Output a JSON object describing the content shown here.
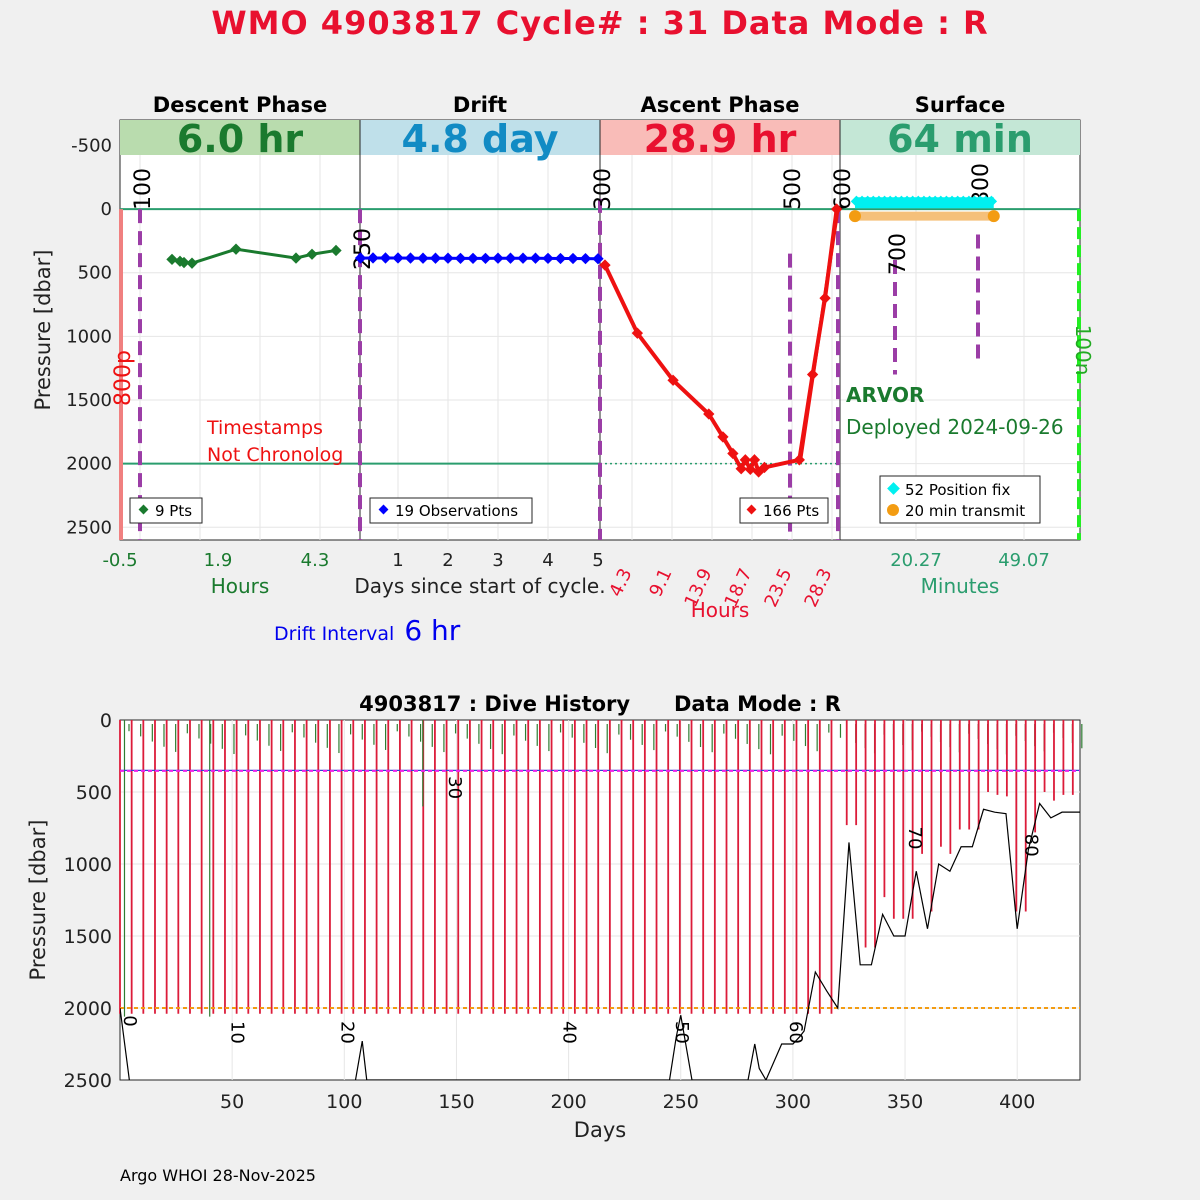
{
  "title": "WMO 4903817   Cycle# : 31   Data Mode : R",
  "colors": {
    "title": "#e8102f",
    "descent": "#1a7a2e",
    "drift": "#0000ff",
    "ascent": "#ee1111",
    "surface": "#2a9d6e",
    "marker": "#9b3da6",
    "history_red": "#dc1c3a",
    "history_green": "#2e7d32"
  },
  "panels": [
    {
      "heading": "Descent Phase",
      "duration": "6.0 hr",
      "bg": "#b9dcae",
      "fg": "#1a7a2e"
    },
    {
      "heading": "Drift",
      "duration": "4.8 day",
      "bg": "#bfe0ea",
      "fg": "#118bc4"
    },
    {
      "heading": "Ascent Phase",
      "duration": "28.9 hr",
      "bg": "#f9bcb8",
      "fg": "#e8102f"
    },
    {
      "heading": "Surface",
      "duration": "64 min",
      "bg": "#c4e7d6",
      "fg": "#2a9d6e"
    }
  ],
  "axis_labels": {
    "pressure": "Pressure [dbar]",
    "descent_x": "Hours",
    "drift_x": "Days since start of cycle.",
    "ascent_x": "Hours",
    "surface_x": "Minutes"
  },
  "annotations": {
    "timestamps_line1": "Timestamps",
    "timestamps_line2": "Not Chronolog",
    "float_type": "ARVOR",
    "deployed": "Deployed 2024-09-26",
    "p800": "800p",
    "n100": "100n"
  },
  "drift_interval": {
    "label": "Drift Interval",
    "value": "6 hr"
  },
  "credit": "Argo WHOI 28-Nov-2025",
  "chart_data": [
    {
      "type": "line",
      "title": "Descent Phase",
      "xlabel": "Hours",
      "ylabel": "Pressure [dbar]",
      "xticks": [
        "-0.5",
        "1.9",
        "4.3"
      ],
      "yticks": [
        "-500",
        "0",
        "500",
        "1000",
        "1500",
        "2000",
        "2500"
      ],
      "ylim": [
        -700,
        2600
      ],
      "legend": "9 Pts",
      "series": [
        {
          "x": [
            0.8,
            1.0,
            1.1,
            1.3,
            2.4,
            3.9,
            4.3,
            4.9
          ],
          "y": [
            395,
            410,
            420,
            425,
            315,
            385,
            355,
            325
          ]
        }
      ],
      "marker_labels": [
        "100"
      ]
    },
    {
      "type": "line",
      "title": "Drift",
      "xlabel": "Days since start of cycle.",
      "xticks": [
        "1",
        "2",
        "3",
        "4",
        "5"
      ],
      "legend": "19 Observations",
      "series": [
        {
          "x": [
            0.25,
            0.5,
            0.75,
            1.0,
            1.25,
            1.5,
            1.75,
            2.0,
            2.25,
            2.5,
            2.75,
            3.0,
            3.25,
            3.5,
            3.75,
            4.0,
            4.25,
            4.5,
            4.75,
            5.0
          ],
          "y": [
            385,
            384,
            384,
            384,
            385,
            386,
            386,
            386,
            387,
            387,
            387,
            386,
            386,
            386,
            386,
            387,
            388,
            388,
            389,
            390
          ]
        }
      ],
      "marker_labels": [
        "250"
      ]
    },
    {
      "type": "line",
      "title": "Ascent Phase",
      "xlabel": "Hours",
      "xticks": [
        "4.3",
        "9.1",
        "13.9",
        "18.7",
        "23.5",
        "28.3"
      ],
      "legend": "166 Pts",
      "series": [
        {
          "x": [
            0.6,
            4.5,
            8.8,
            13.1,
            14.8,
            16.0,
            17.0,
            17.5,
            18.1,
            18.6,
            19.1,
            19.8,
            24.0,
            25.6,
            27.1,
            28.5
          ],
          "y": [
            440,
            975,
            1345,
            1610,
            1790,
            1920,
            2040,
            1970,
            2045,
            1970,
            2065,
            2030,
            1970,
            1300,
            700,
            0
          ]
        }
      ],
      "marker_labels": [
        "300",
        "500",
        "600"
      ]
    },
    {
      "type": "scatter",
      "title": "Surface",
      "xlabel": "Minutes",
      "xticks": [
        "20.27",
        "49.07"
      ],
      "legend": [
        "52 Position fix",
        "20 min transmit"
      ],
      "series": [
        {
          "name": "52 Position fix",
          "x_range": [
            4,
            41
          ],
          "y": -50
        },
        {
          "name": "20 min transmit",
          "x_range": [
            4,
            41
          ],
          "y": 55
        }
      ],
      "marker_labels": [
        "700",
        "800"
      ]
    },
    {
      "type": "line",
      "title": "4903817 : Dive History      Data Mode : R",
      "xlabel": "Days",
      "ylabel": "Pressure [dbar]",
      "xlim": [
        0,
        428
      ],
      "ylim": [
        0,
        2500
      ],
      "xticks": [
        "50",
        "100",
        "150",
        "200",
        "250",
        "300",
        "350",
        "400"
      ],
      "yticks": [
        "0",
        "500",
        "1000",
        "1500",
        "2000",
        "2500"
      ],
      "reference_lines": {
        "parking": 350,
        "profile": 2000
      },
      "cycle_labels": [
        "0",
        "10",
        "20",
        "30",
        "40",
        "50",
        "60",
        "70",
        "80"
      ],
      "bottom_pressure": {
        "x": [
          0,
          5,
          100,
          105,
          108,
          110,
          245,
          248,
          250,
          255,
          280,
          283,
          285,
          288,
          295,
          300,
          303,
          305,
          310,
          315,
          320,
          325,
          330,
          335,
          340,
          345,
          350,
          355,
          360,
          365,
          370,
          375,
          380,
          385,
          390,
          395,
          400,
          405,
          410,
          415,
          420,
          425,
          428
        ],
        "y": [
          2000,
          2600,
          2600,
          2500,
          2230,
          2500,
          2500,
          2200,
          2050,
          2500,
          2500,
          2250,
          2420,
          2500,
          2250,
          2250,
          2200,
          2160,
          1750,
          1880,
          2000,
          850,
          1700,
          1700,
          1350,
          1500,
          1500,
          1050,
          1450,
          1000,
          1050,
          880,
          880,
          620,
          640,
          650,
          1450,
          900,
          580,
          680,
          640,
          640,
          640
        ]
      }
    }
  ]
}
